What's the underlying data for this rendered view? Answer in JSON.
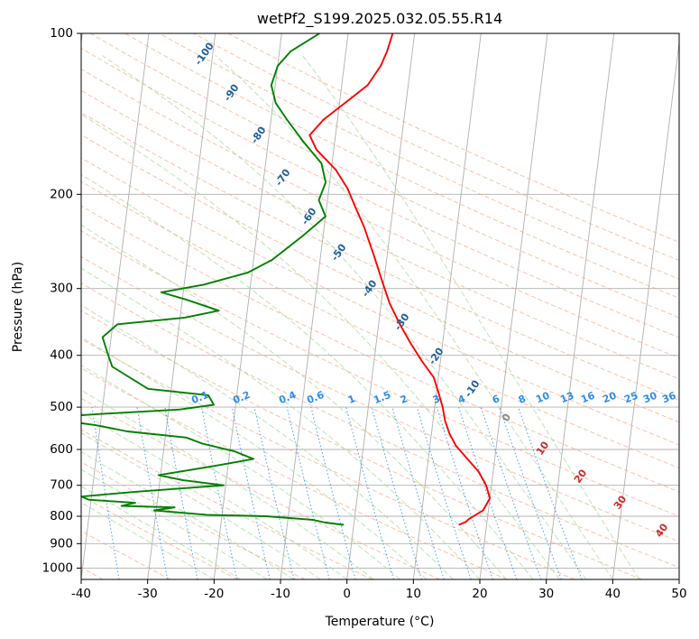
{
  "chart_data": {
    "type": "line",
    "subtype": "skew-t log-p",
    "title": "wetPf2_S199.2025.032.05.55.R14",
    "xlabel": "Temperature (°C)",
    "ylabel": "Pressure (hPa)",
    "xlim": [
      -40,
      50
    ],
    "ylim": [
      1050,
      100
    ],
    "y_scale": "log",
    "grid": true,
    "x_ticks": [
      -40,
      -30,
      -20,
      -10,
      0,
      10,
      20,
      30,
      40,
      50
    ],
    "y_ticks": [
      100,
      200,
      300,
      400,
      500,
      600,
      700,
      800,
      900,
      1000
    ],
    "series": [
      {
        "role": "temperature",
        "color": "#ff0000",
        "points": [
          [
            830,
            15.8
          ],
          [
            820,
            16.8
          ],
          [
            810,
            17.2
          ],
          [
            780,
            19.2
          ],
          [
            740,
            20.0
          ],
          [
            700,
            19.2
          ],
          [
            660,
            17.8
          ],
          [
            620,
            15.6
          ],
          [
            590,
            13.9
          ],
          [
            560,
            12.7
          ],
          [
            530,
            11.8
          ],
          [
            500,
            11.2
          ],
          [
            470,
            10.3
          ],
          [
            440,
            9.3
          ],
          [
            410,
            7.2
          ],
          [
            380,
            5.2
          ],
          [
            350,
            3.2
          ],
          [
            320,
            1.3
          ],
          [
            290,
            -0.3
          ],
          [
            260,
            -2.0
          ],
          [
            230,
            -4.0
          ],
          [
            210,
            -5.8
          ],
          [
            195,
            -7.2
          ],
          [
            180,
            -9.3
          ],
          [
            165,
            -12.6
          ],
          [
            155,
            -13.9
          ],
          [
            145,
            -12.1
          ],
          [
            135,
            -9.2
          ],
          [
            125,
            -6.1
          ],
          [
            115,
            -4.5
          ],
          [
            108,
            -3.8
          ],
          [
            100,
            -3.3
          ]
        ]
      },
      {
        "role": "dewpoint",
        "color": "#008000",
        "points": [
          [
            830,
            -1.5
          ],
          [
            822,
            -4.3
          ],
          [
            812,
            -6.3
          ],
          [
            800,
            -13.3
          ],
          [
            795,
            -22.3
          ],
          [
            780,
            -30.3
          ],
          [
            770,
            -27.3
          ],
          [
            765,
            -35.3
          ],
          [
            755,
            -33.3
          ],
          [
            745,
            -40.3
          ],
          [
            735,
            -41.5
          ],
          [
            720,
            -33.5
          ],
          [
            700,
            -20.3
          ],
          [
            685,
            -26.5
          ],
          [
            670,
            -30.3
          ],
          [
            645,
            -22.3
          ],
          [
            625,
            -16.3
          ],
          [
            605,
            -19.3
          ],
          [
            585,
            -24.3
          ],
          [
            570,
            -26.8
          ],
          [
            555,
            -35.8
          ],
          [
            540,
            -40.8
          ],
          [
            530,
            -45.8
          ],
          [
            523,
            -48.3
          ],
          [
            515,
            -40.3
          ],
          [
            505,
            -28.3
          ],
          [
            495,
            -23.3
          ],
          [
            475,
            -24.3
          ],
          [
            462,
            -33.5
          ],
          [
            420,
            -39.3
          ],
          [
            395,
            -40.3
          ],
          [
            370,
            -41.3
          ],
          [
            350,
            -39.3
          ],
          [
            340,
            -29.3
          ],
          [
            330,
            -24.3
          ],
          [
            315,
            -29.3
          ],
          [
            305,
            -33.3
          ],
          [
            295,
            -27.0
          ],
          [
            280,
            -20.6
          ],
          [
            265,
            -17.2
          ],
          [
            240,
            -13.2
          ],
          [
            220,
            -10.0
          ],
          [
            205,
            -11.3
          ],
          [
            190,
            -10.6
          ],
          [
            175,
            -11.6
          ],
          [
            160,
            -14.6
          ],
          [
            145,
            -17.6
          ],
          [
            135,
            -19.6
          ],
          [
            125,
            -20.6
          ],
          [
            115,
            -20.0
          ],
          [
            108,
            -18.3
          ],
          [
            100,
            -14.3
          ]
        ]
      }
    ],
    "dry_adiabat_labels": [
      "-100",
      "-90",
      "-80",
      "-70",
      "-60",
      "-50",
      "-40",
      "-30",
      "-20",
      "-10",
      "0",
      "10",
      "20",
      "30",
      "40"
    ],
    "mixing_ratio_labels": [
      "0.1",
      "0.2",
      "0.4",
      "0.6",
      "1",
      "1.5",
      "2",
      "3",
      "4",
      "6",
      "8",
      "10",
      "13",
      "16",
      "20",
      "25",
      "30",
      "36"
    ],
    "colors": {
      "dry_adiabat_label": "#1f5f99",
      "warm_adiabat_label": "#cc2a2a",
      "mixing_ratio_label": "#2e8de6",
      "grid": "#b0b0b0"
    }
  }
}
